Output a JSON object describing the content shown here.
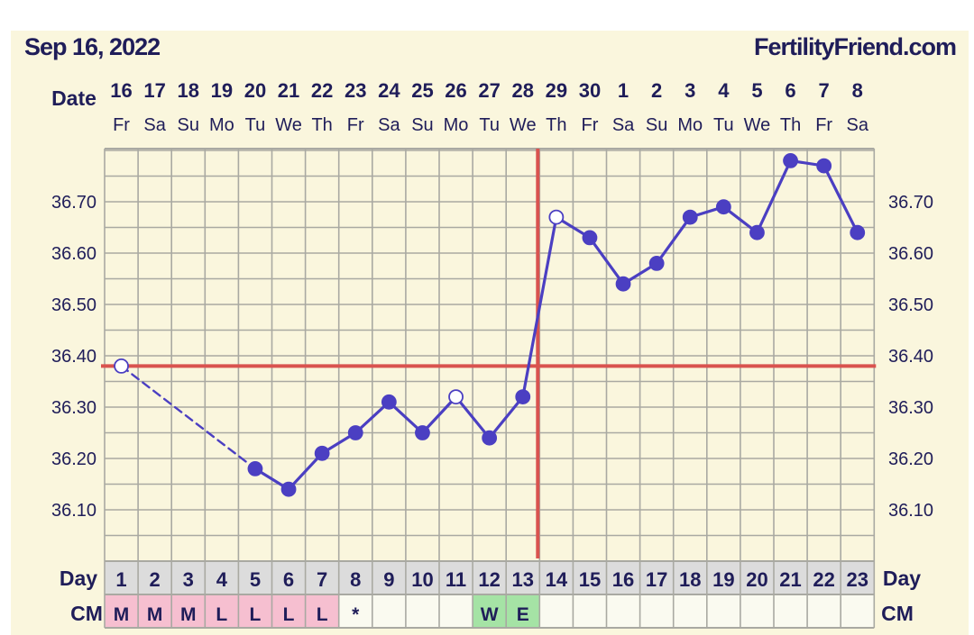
{
  "header": {
    "date": "Sep 16, 2022",
    "site": "FertilityFriend.com"
  },
  "labels": {
    "date": "Date",
    "day": "Day",
    "cm": "CM"
  },
  "colors": {
    "background": "#faf6dd",
    "grid": "#a9a9a2",
    "line": "#4b3fc2",
    "coverline": "#d9534f",
    "text": "#1f1d59",
    "cm_pink": "#f6bfd0",
    "cm_green": "#a5e3a5",
    "row_fill": "#dcdcdc"
  },
  "chart_data": {
    "type": "line",
    "dates": [
      "16",
      "17",
      "18",
      "19",
      "20",
      "21",
      "22",
      "23",
      "24",
      "25",
      "26",
      "27",
      "28",
      "29",
      "30",
      "1",
      "2",
      "3",
      "4",
      "5",
      "6",
      "7",
      "8"
    ],
    "weekdays": [
      "Fr",
      "Sa",
      "Su",
      "Mo",
      "Tu",
      "We",
      "Th",
      "Fr",
      "Sa",
      "Su",
      "Mo",
      "Tu",
      "We",
      "Th",
      "Fr",
      "Sa",
      "Su",
      "Mo",
      "Tu",
      "We",
      "Th",
      "Fr",
      "Sa"
    ],
    "days": [
      "1",
      "2",
      "3",
      "4",
      "5",
      "6",
      "7",
      "8",
      "9",
      "10",
      "11",
      "12",
      "13",
      "14",
      "15",
      "16",
      "17",
      "18",
      "19",
      "20",
      "21",
      "22",
      "23"
    ],
    "yticks": [
      "36.10",
      "36.20",
      "36.30",
      "36.40",
      "36.50",
      "36.60",
      "36.70"
    ],
    "ylim": [
      36.0,
      36.8
    ],
    "temps": [
      {
        "day": 1,
        "value": 36.38,
        "open": true
      },
      {
        "day": 5,
        "value": 36.18,
        "open": false
      },
      {
        "day": 6,
        "value": 36.14,
        "open": false
      },
      {
        "day": 7,
        "value": 36.21,
        "open": false
      },
      {
        "day": 8,
        "value": 36.25,
        "open": false
      },
      {
        "day": 9,
        "value": 36.31,
        "open": false
      },
      {
        "day": 10,
        "value": 36.25,
        "open": false
      },
      {
        "day": 11,
        "value": 36.32,
        "open": true
      },
      {
        "day": 12,
        "value": 36.24,
        "open": false
      },
      {
        "day": 13,
        "value": 36.32,
        "open": false
      },
      {
        "day": 14,
        "value": 36.67,
        "open": true
      },
      {
        "day": 15,
        "value": 36.63,
        "open": false
      },
      {
        "day": 16,
        "value": 36.54,
        "open": false
      },
      {
        "day": 17,
        "value": 36.58,
        "open": false
      },
      {
        "day": 18,
        "value": 36.67,
        "open": false
      },
      {
        "day": 19,
        "value": 36.69,
        "open": false
      },
      {
        "day": 20,
        "value": 36.64,
        "open": false
      },
      {
        "day": 21,
        "value": 36.78,
        "open": false
      },
      {
        "day": 22,
        "value": 36.77,
        "open": false
      },
      {
        "day": 23,
        "value": 36.64,
        "open": false
      }
    ],
    "dashed_gap": [
      1,
      5
    ],
    "coverline": 36.38,
    "ovulation_day": 13,
    "cm": [
      "M",
      "M",
      "M",
      "L",
      "L",
      "L",
      "L",
      "*",
      "",
      "",
      "",
      "W",
      "E",
      "",
      "",
      "",
      "",
      "",
      "",
      "",
      "",
      "",
      ""
    ],
    "cm_colors": [
      "pink",
      "pink",
      "pink",
      "pink",
      "pink",
      "pink",
      "pink",
      "",
      "",
      "",
      "",
      "green",
      "green",
      "",
      "",
      "",
      "",
      "",
      "",
      "",
      "",
      "",
      ""
    ],
    "grid": true
  }
}
